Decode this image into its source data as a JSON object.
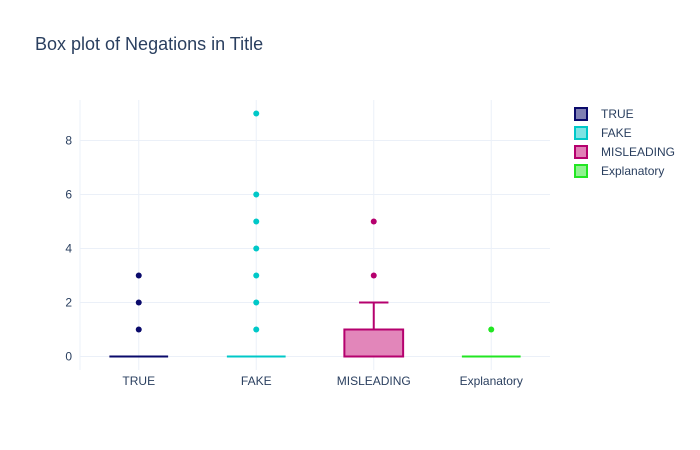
{
  "chart_data": {
    "type": "box",
    "title": "Box plot of Negations in Title",
    "xlabel": "",
    "ylabel": "",
    "categories": [
      "TRUE",
      "FAKE",
      "MISLEADING",
      "Explanatory"
    ],
    "ylim": [
      -0.5,
      9.5
    ],
    "yticks": [
      0,
      2,
      4,
      6,
      8
    ],
    "grid": true,
    "legend_position": "top-right",
    "series": [
      {
        "name": "TRUE",
        "color": "#0a0a6b",
        "fill": "#8080b3",
        "min": 0,
        "q1": 0,
        "median": 0,
        "q3": 0,
        "max": 0,
        "outliers": [
          1,
          2,
          3
        ]
      },
      {
        "name": "FAKE",
        "color": "#00c8c8",
        "fill": "#7fe3e3",
        "min": 0,
        "q1": 0,
        "median": 0,
        "q3": 0,
        "max": 0,
        "outliers": [
          1,
          2,
          3,
          4,
          5,
          6,
          9
        ]
      },
      {
        "name": "MISLEADING",
        "color": "#b5006e",
        "fill": "#e07fb6",
        "min": 0,
        "q1": 0,
        "median": 0,
        "q3": 1,
        "max": 2,
        "outliers": [
          3,
          5
        ]
      },
      {
        "name": "Explanatory",
        "color": "#22e622",
        "fill": "#90f290",
        "min": 0,
        "q1": 0,
        "median": 0,
        "q3": 0,
        "max": 0,
        "outliers": [
          1
        ]
      }
    ]
  }
}
